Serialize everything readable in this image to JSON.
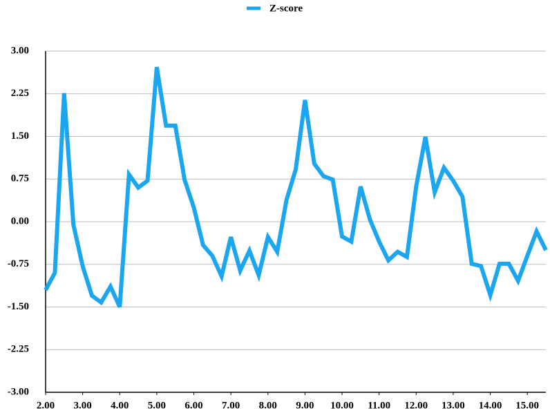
{
  "chart_data": {
    "type": "line",
    "x": [
      2.0,
      2.25,
      2.5,
      2.75,
      3.0,
      3.25,
      3.5,
      3.75,
      4.0,
      4.25,
      4.5,
      4.75,
      5.0,
      5.25,
      5.5,
      5.75,
      6.0,
      6.25,
      6.5,
      6.75,
      7.0,
      7.25,
      7.5,
      7.75,
      8.0,
      8.25,
      8.5,
      8.75,
      9.0,
      9.25,
      9.5,
      9.75,
      10.0,
      10.25,
      10.5,
      10.75,
      11.0,
      11.25,
      11.5,
      11.75,
      12.0,
      12.25,
      12.5,
      12.75,
      13.0,
      13.25,
      13.5,
      13.75,
      14.0,
      14.25,
      14.5,
      14.75,
      15.0,
      15.25,
      15.5
    ],
    "series": [
      {
        "name": "Z-score",
        "color": "#1ca6f0",
        "values": [
          -1.2,
          -0.9,
          2.26,
          -0.05,
          -0.78,
          -1.3,
          -1.42,
          -1.14,
          -1.5,
          0.83,
          0.6,
          0.72,
          2.72,
          1.69,
          1.69,
          0.74,
          0.25,
          -0.41,
          -0.6,
          -0.96,
          -0.27,
          -0.86,
          -0.51,
          -0.94,
          -0.27,
          -0.53,
          0.38,
          0.92,
          2.14,
          1.02,
          0.8,
          0.74,
          -0.26,
          -0.35,
          0.62,
          0.04,
          -0.35,
          -0.68,
          -0.53,
          -0.62,
          0.62,
          1.49,
          0.52,
          0.95,
          0.72,
          0.44,
          -0.74,
          -0.78,
          -1.29,
          -0.74,
          -0.74,
          -1.04,
          -0.6,
          -0.17,
          -0.5
        ]
      }
    ],
    "xlim": [
      2,
      15.5
    ],
    "xticks": [
      {
        "value": 2,
        "label": "2.00"
      },
      {
        "value": 3,
        "label": "3.00"
      },
      {
        "value": 4,
        "label": "4.00"
      },
      {
        "value": 5,
        "label": "5.00"
      },
      {
        "value": 6,
        "label": "6.00"
      },
      {
        "value": 7,
        "label": "7.00"
      },
      {
        "value": 8,
        "label": "8.00"
      },
      {
        "value": 9,
        "label": "9.00"
      },
      {
        "value": 10,
        "label": "10.00"
      },
      {
        "value": 11,
        "label": "11.00"
      },
      {
        "value": 12,
        "label": "12.00"
      },
      {
        "value": 13,
        "label": "13.00"
      },
      {
        "value": 14,
        "label": "14.00"
      },
      {
        "value": 15,
        "label": "15.00"
      }
    ],
    "ylim": [
      -3,
      3
    ],
    "yticks": [
      {
        "value": -3,
        "label": "-3.00"
      },
      {
        "value": -2.25,
        "label": "-2.25"
      },
      {
        "value": -1.5,
        "label": "-1.50"
      },
      {
        "value": -0.75,
        "label": "-0.75"
      },
      {
        "value": 0,
        "label": "0.00"
      },
      {
        "value": 0.75,
        "label": "0.75"
      },
      {
        "value": 1.5,
        "label": "1.50"
      },
      {
        "value": 2.25,
        "label": "2.25"
      },
      {
        "value": 3,
        "label": "3.00"
      }
    ],
    "grid": true,
    "legend": "top"
  }
}
